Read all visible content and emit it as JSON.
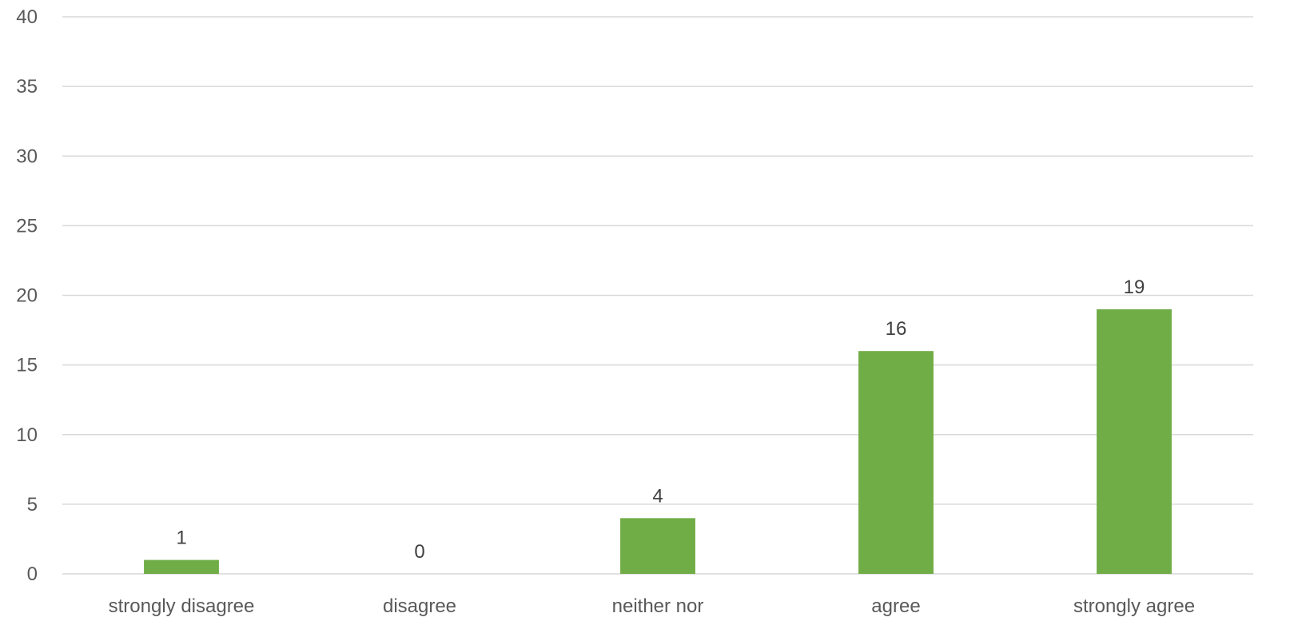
{
  "chart_data": {
    "type": "bar",
    "title": "",
    "xlabel": "",
    "ylabel": "",
    "categories": [
      "strongly disagree",
      "disagree",
      "neither nor",
      "agree",
      "strongly agree"
    ],
    "values": [
      1,
      0,
      4,
      16,
      19
    ],
    "data_labels": [
      "1",
      "0",
      "4",
      "16",
      "19"
    ],
    "ylim": [
      0,
      40
    ],
    "yticks": [
      0,
      5,
      10,
      15,
      20,
      25,
      30,
      35,
      40
    ],
    "grid": true,
    "legend": "none",
    "bar_color": "#70ad47"
  }
}
